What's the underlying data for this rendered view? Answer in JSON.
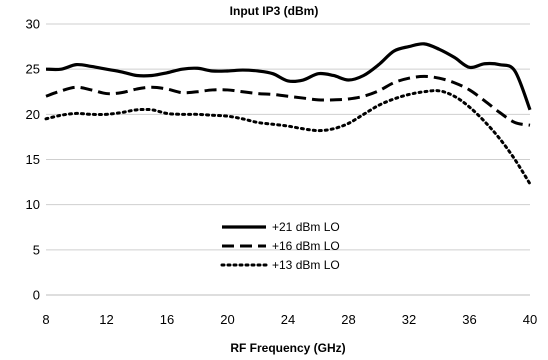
{
  "chart_data": {
    "type": "line",
    "title": "Input IP3 (dBm)",
    "xlabel": "RF Frequency (GHz)",
    "ylabel": "",
    "xlim": [
      8,
      40
    ],
    "ylim": [
      0,
      30
    ],
    "xticks": [
      8,
      12,
      16,
      20,
      24,
      28,
      32,
      36,
      40
    ],
    "yticks": [
      0,
      5,
      10,
      15,
      20,
      25,
      30
    ],
    "grid": "horizontal",
    "legend_position": "lower-center",
    "series": [
      {
        "name": "+21 dBm LO",
        "style": "solid",
        "color": "#000000",
        "x": [
          8,
          9,
          10,
          11,
          12,
          13,
          14,
          15,
          16,
          17,
          18,
          19,
          20,
          21,
          22,
          23,
          24,
          25,
          26,
          27,
          28,
          29,
          30,
          31,
          32,
          33,
          34,
          35,
          36,
          37,
          38,
          39,
          40
        ],
        "y": [
          25.0,
          25.0,
          25.5,
          25.3,
          25.0,
          24.7,
          24.3,
          24.3,
          24.6,
          25.0,
          25.1,
          24.8,
          24.8,
          24.9,
          24.8,
          24.5,
          23.7,
          23.8,
          24.5,
          24.3,
          23.8,
          24.3,
          25.5,
          27.0,
          27.5,
          27.8,
          27.2,
          26.3,
          25.2,
          25.6,
          25.5,
          24.8,
          20.5
        ]
      },
      {
        "name": "+16 dBm LO",
        "style": "dashed",
        "color": "#000000",
        "x": [
          8,
          9,
          10,
          11,
          12,
          13,
          14,
          15,
          16,
          17,
          18,
          19,
          20,
          21,
          22,
          23,
          24,
          25,
          26,
          27,
          28,
          29,
          30,
          31,
          32,
          33,
          34,
          35,
          36,
          37,
          38,
          39,
          40
        ],
        "y": [
          22.0,
          22.6,
          23.0,
          22.7,
          22.3,
          22.4,
          22.8,
          23.0,
          22.8,
          22.4,
          22.5,
          22.7,
          22.7,
          22.5,
          22.3,
          22.2,
          22.0,
          21.8,
          21.6,
          21.6,
          21.7,
          22.0,
          22.6,
          23.5,
          24.0,
          24.2,
          24.0,
          23.5,
          22.7,
          21.5,
          20.2,
          19.1,
          18.8
        ]
      },
      {
        "name": "+13 dBm LO",
        "style": "dotted",
        "color": "#000000",
        "x": [
          8,
          9,
          10,
          11,
          12,
          13,
          14,
          15,
          16,
          17,
          18,
          19,
          20,
          21,
          22,
          23,
          24,
          25,
          26,
          27,
          28,
          29,
          30,
          31,
          32,
          33,
          34,
          35,
          36,
          37,
          38,
          39,
          40
        ],
        "y": [
          19.5,
          19.9,
          20.1,
          20.0,
          20.0,
          20.2,
          20.5,
          20.5,
          20.1,
          20.0,
          20.0,
          19.9,
          19.8,
          19.5,
          19.1,
          18.9,
          18.7,
          18.4,
          18.2,
          18.4,
          19.0,
          20.0,
          21.0,
          21.7,
          22.2,
          22.5,
          22.6,
          22.0,
          20.8,
          19.2,
          17.3,
          15.0,
          12.3
        ]
      }
    ]
  }
}
